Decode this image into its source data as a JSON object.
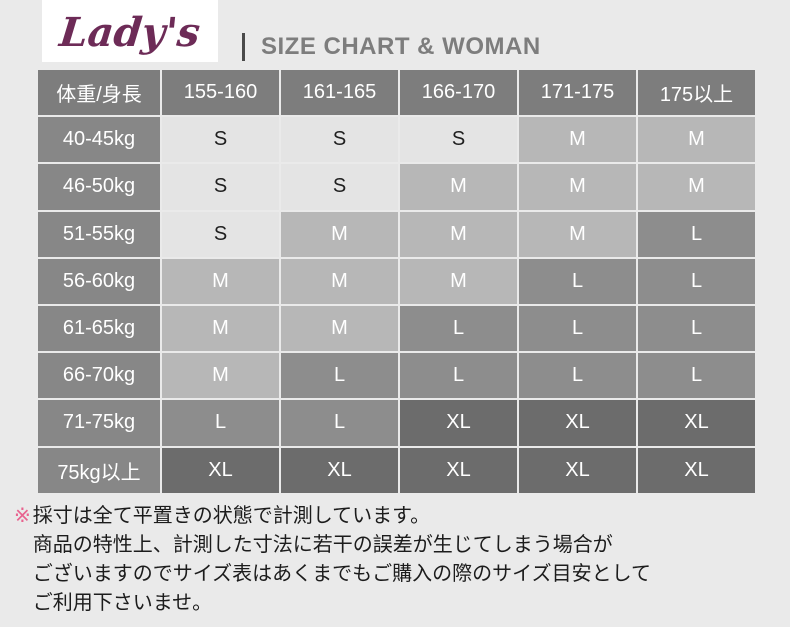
{
  "header": {
    "logo_text": "Lady's",
    "title": "SIZE CHART & WOMAN"
  },
  "table": {
    "corner_header": "体重/身長",
    "column_headers": [
      "155-160",
      "161-165",
      "166-170",
      "171-175",
      "175以上"
    ],
    "rows": [
      {
        "label": "40-45kg",
        "cells": [
          "S",
          "S",
          "S",
          "M",
          "M"
        ]
      },
      {
        "label": "46-50kg",
        "cells": [
          "S",
          "S",
          "M",
          "M",
          "M"
        ]
      },
      {
        "label": "51-55kg",
        "cells": [
          "S",
          "M",
          "M",
          "M",
          "L"
        ]
      },
      {
        "label": "56-60kg",
        "cells": [
          "M",
          "M",
          "M",
          "L",
          "L"
        ]
      },
      {
        "label": "61-65kg",
        "cells": [
          "M",
          "M",
          "L",
          "L",
          "L"
        ]
      },
      {
        "label": "66-70kg",
        "cells": [
          "M",
          "L",
          "L",
          "L",
          "L"
        ]
      },
      {
        "label": "71-75kg",
        "cells": [
          "L",
          "L",
          "XL",
          "XL",
          "XL"
        ]
      },
      {
        "label": "75kg以上",
        "cells": [
          "XL",
          "XL",
          "XL",
          "XL",
          "XL"
        ]
      }
    ]
  },
  "footnote": {
    "marker": "※",
    "lines": [
      "採寸は全て平置きの状態で計測しています。",
      "商品の特性上、計測した寸法に若干の誤差が生じてしまう場合が",
      "ございますのでサイズ表はあくまでもご購入の際のサイズ目安として",
      "ご利用下さいませ。"
    ]
  },
  "colors": {
    "page_bg": "#eaeaea",
    "logo": "#6d2b57",
    "title_text": "#7d7d7d",
    "marker_pink": "#e8638f",
    "header_cell_bg": "#7d7d7d",
    "row_label_bg": "#878787",
    "size_S_bg": "#e4e4e4",
    "size_M_bg": "#b7b7b7",
    "size_L_bg": "#8d8d8d",
    "size_XL_bg": "#6c6c6c"
  }
}
